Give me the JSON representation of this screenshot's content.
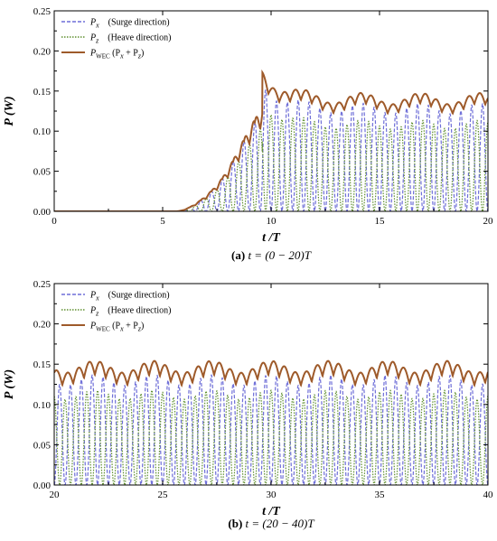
{
  "chart_data": [
    {
      "type": "line",
      "caption_letter": "(a)",
      "caption_text": "t = (0 − 20)T",
      "xlabel": "t /T",
      "ylabel": "P (W)",
      "xlim": [
        0,
        20
      ],
      "ylim": [
        0,
        0.25
      ],
      "xticks": [
        0,
        5,
        10,
        15,
        20
      ],
      "yticks": [
        "0.00",
        "0.05",
        "0.10",
        "0.15",
        "0.20",
        "0.25"
      ],
      "grid": false,
      "legend_position": "top-left",
      "period_per_x_unit": 2,
      "ramp": {
        "start_x": 5.6,
        "end_x": 9.6,
        "overshoot_peak_x": 10.0,
        "overshoot_peak_value": 0.165
      },
      "series": [
        {
          "name": "Px (Surge direction)",
          "style": "dashed",
          "color": "#6f6fd8",
          "peak_value": 0.128,
          "trough_value": 0.0
        },
        {
          "name": "Pz (Heave direction)",
          "style": "dotted",
          "color": "#5f8f2f",
          "peak_value": 0.108,
          "trough_value": 0.0
        },
        {
          "name": "PWEC (Px + Pz)",
          "style": "solid",
          "color": "#9e5a2a",
          "peak_value": 0.143,
          "trough_value": 0.118
        }
      ]
    },
    {
      "type": "line",
      "caption_letter": "(b)",
      "caption_text": "t = (20 − 40)T",
      "xlabel": "t /T",
      "ylabel": "P (W)",
      "xlim": [
        20,
        40
      ],
      "ylim": [
        0,
        0.25
      ],
      "xticks": [
        20,
        25,
        30,
        35,
        40
      ],
      "yticks": [
        "0.00",
        "0.05",
        "0.10",
        "0.15",
        "0.20",
        "0.25"
      ],
      "grid": false,
      "legend_position": "top-left",
      "period_per_x_unit": 2,
      "series": [
        {
          "name": "Px (Surge direction)",
          "style": "dashed",
          "color": "#6f6fd8",
          "peak_value": 0.13,
          "trough_value": 0.0
        },
        {
          "name": "Pz (Heave direction)",
          "style": "dotted",
          "color": "#5f8f2f",
          "peak_value": 0.112,
          "trough_value": 0.0
        },
        {
          "name": "PWEC (Px + Pz)",
          "style": "solid",
          "color": "#9e5a2a",
          "peak_value": 0.15,
          "trough_value": 0.117
        }
      ]
    }
  ],
  "legend": {
    "px_symbol": "P",
    "px_sub": "x",
    "px_desc": "(Surge direction)",
    "pz_symbol": "P",
    "pz_sub": "z",
    "pz_desc": "(Heave direction)",
    "pwec_symbol": "P",
    "pwec_sub": "WEC",
    "pwec_desc_open": "(P",
    "pwec_desc_x": "x",
    "pwec_desc_plus": " + P",
    "pwec_desc_z": "z",
    "pwec_desc_close": ")"
  }
}
